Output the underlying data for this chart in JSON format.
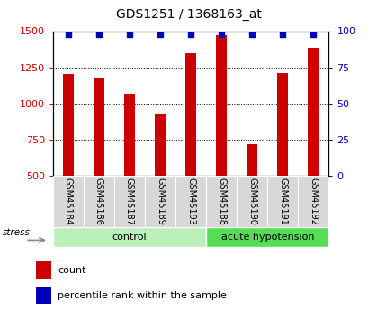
{
  "title": "GDS1251 / 1368163_at",
  "samples": [
    "GSM45184",
    "GSM45186",
    "GSM45187",
    "GSM45189",
    "GSM45193",
    "GSM45188",
    "GSM45190",
    "GSM45191",
    "GSM45192"
  ],
  "counts": [
    1205,
    1180,
    1065,
    930,
    1350,
    1470,
    720,
    1210,
    1385
  ],
  "percentiles": [
    98,
    98,
    98,
    98,
    98,
    98,
    98,
    98,
    98
  ],
  "n_control": 5,
  "n_acute": 4,
  "group_labels": [
    "control",
    "acute hypotension"
  ],
  "group_color_control": "#bbf0bb",
  "group_color_acute": "#55dd55",
  "bar_color": "#cc0000",
  "dot_color": "#0000bb",
  "ylim_left": [
    500,
    1500
  ],
  "ylim_right": [
    0,
    100
  ],
  "yticks_left": [
    500,
    750,
    1000,
    1250,
    1500
  ],
  "yticks_right": [
    0,
    25,
    50,
    75,
    100
  ],
  "left_tick_color": "#cc0000",
  "right_tick_color": "#0000bb",
  "background_color": "#ffffff",
  "legend_count_label": "count",
  "legend_pct_label": "percentile rank within the sample",
  "title_fontsize": 10,
  "tick_labelsize": 8,
  "bar_width": 0.35
}
